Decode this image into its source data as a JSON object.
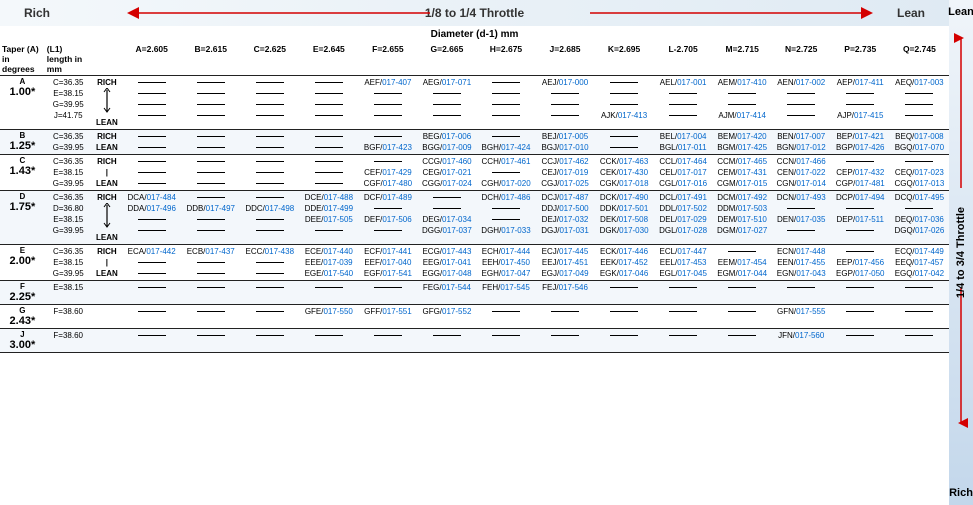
{
  "top": {
    "rich": "Rich",
    "lean": "Lean",
    "mid": "1/8 to 1/4 Throttle"
  },
  "right": {
    "top": "Lean",
    "mid": "1/4 to  3/4 Throttle",
    "bot": "Rich"
  },
  "diam_header": "Diameter (d-1) mm",
  "head": {
    "taper": "Taper (A)\nin degrees",
    "len": "(L1) length\nin mm"
  },
  "cols": [
    "A=2.605",
    "B=2.615",
    "C=2.625",
    "E=2.645",
    "F=2.655",
    "G=2.665",
    "H=2.675",
    "J=2.685",
    "K=2.695",
    "L-2.705",
    "M=2.715",
    "N=2.725",
    "P=2.735",
    "Q=2.745"
  ],
  "arrow_labels": {
    "rich": "RICH",
    "lean": "LEAN"
  },
  "groups": [
    {
      "taper": "A",
      "deg": "1.00*",
      "lens": [
        "C=36.35",
        "E=38.15",
        "G=39.95",
        "J=41.75"
      ],
      "rl": [
        "RICH",
        "",
        "",
        "LEAN"
      ],
      "arrow": true,
      "rows": [
        [
          "—",
          "—",
          "—",
          "—",
          "AEF/017-407",
          "AEG/017-071",
          "—",
          "AEJ/017-000",
          "—",
          "AEL/017-001",
          "AEM/017-410",
          "AEN/017-002",
          "AEP/017-411",
          "AEQ/017-003"
        ],
        [
          "—",
          "—",
          "—",
          "—",
          "—",
          "—",
          "—",
          "—",
          "—",
          "—",
          "—",
          "—",
          "—",
          "—"
        ],
        [
          "—",
          "—",
          "—",
          "—",
          "—",
          "—",
          "—",
          "—",
          "—",
          "—",
          "—",
          "—",
          "—",
          "—"
        ],
        [
          "—",
          "—",
          "—",
          "—",
          "—",
          "—",
          "—",
          "—",
          "AJK/017-413",
          "—",
          "AJM/017-414",
          "—",
          "AJP/017-415",
          "—"
        ]
      ]
    },
    {
      "taper": "B",
      "deg": "1.25*",
      "lens": [
        "C=36.35",
        "G=39.95"
      ],
      "rl": [
        "RICH",
        "LEAN"
      ],
      "rows": [
        [
          "—",
          "—",
          "—",
          "—",
          "—",
          "BEG/017-006",
          "—",
          "BEJ/017-005",
          "—",
          "BEL/017-004",
          "BEM/017-420",
          "BEN/017-007",
          "BEP/017-421",
          "BEQ/017-008"
        ],
        [
          "—",
          "—",
          "—",
          "—",
          "BGF/017-423",
          "BGG/017-009",
          "BGH/017-424",
          "BGJ/017-010",
          "—",
          "BGL/017-011",
          "BGM/017-425",
          "BGN/017-012",
          "BGP/017-426",
          "BGQ/017-070"
        ]
      ]
    },
    {
      "taper": "C",
      "deg": "1.43*",
      "lens": [
        "C=36.35",
        "E=38.15",
        "G=39.95"
      ],
      "rl": [
        "RICH",
        "|",
        "LEAN"
      ],
      "rows": [
        [
          "—",
          "—",
          "—",
          "—",
          "—",
          "CCG/017-460",
          "CCH/017-461",
          "CCJ/017-462",
          "CCK/017-463",
          "CCL/017-464",
          "CCM/017-465",
          "CCN/017-466",
          "—",
          "—"
        ],
        [
          "—",
          "—",
          "—",
          "—",
          "CEF/017-429",
          "CEG/017-021",
          "—",
          "CEJ/017-019",
          "CEK/017-430",
          "CEL/017-017",
          "CEM/017-431",
          "CEN/017-022",
          "CEP/017-432",
          "CEQ/017-023"
        ],
        [
          "—",
          "—",
          "—",
          "—",
          "CGF/017-480",
          "CGG/017-024",
          "CGH/017-020",
          "CGJ/017-025",
          "CGK/017-018",
          "CGL/017-016",
          "CGM/017-015",
          "CGN/017-014",
          "CGP/017-481",
          "CGQ/017-013"
        ]
      ]
    },
    {
      "taper": "D",
      "deg": "1.75*",
      "lens": [
        "C=36.35",
        "D=36.80",
        "E=38.15",
        "G=39.95"
      ],
      "rl": [
        "RICH",
        "",
        "",
        "LEAN"
      ],
      "arrow": true,
      "rows": [
        [
          "DCA/017-484",
          "—",
          "—",
          "DCE/017-488",
          "DCF/017-489",
          "—",
          "DCH/017-486",
          "DCJ/017-487",
          "DCK/017-490",
          "DCL/017-491",
          "DCM/017-492",
          "DCN/017-493",
          "DCP/017-494",
          "DCQ/017-495"
        ],
        [
          "DDA/017-496",
          "DDB/017-497",
          "DDC/017-498",
          "DDE/017-499",
          "—",
          "—",
          "—",
          "DDJ/017-500",
          "DDK/017-501",
          "DDL/017-502",
          "DDM/017-503",
          "—",
          "—",
          "—"
        ],
        [
          "—",
          "—",
          "—",
          "DEE/017-505",
          "DEF/017-506",
          "DEG/017-034",
          "—",
          "DEJ/017-032",
          "DEK/017-508",
          "DEL/017-029",
          "DEM/017-510",
          "DEN/017-035",
          "DEP/017-511",
          "DEQ/017-036"
        ],
        [
          "—",
          "—",
          "—",
          "—",
          "—",
          "DGG/017-037",
          "DGH/017-033",
          "DGJ/017-031",
          "DGK/017-030",
          "DGL/017-028",
          "DGM/017-027",
          "—",
          "—",
          "DGQ/017-026"
        ]
      ]
    },
    {
      "taper": "E",
      "deg": "2.00*",
      "lens": [
        "C=36.35",
        "E=38.15",
        "G=39.95"
      ],
      "rl": [
        "RICH",
        "|",
        "LEAN"
      ],
      "rows": [
        [
          "ECA/017-442",
          "ECB/017-437",
          "ECC/017-438",
          "ECE/017-440",
          "ECF/017-441",
          "ECG/017-443",
          "ECH/017-444",
          "ECJ/017-445",
          "ECK/017-446",
          "ECL/017-447",
          "—",
          "ECN/017-448",
          "—",
          "ECQ/017-449"
        ],
        [
          "—",
          "—",
          "—",
          "EEE/017-039",
          "EEF/017-040",
          "EEG/017-041",
          "EEH/017-450",
          "EEJ/017-451",
          "EEK/017-452",
          "EEL/017-453",
          "EEM/017-454",
          "EEN/017-455",
          "EEP/017-456",
          "EEQ/017-457"
        ],
        [
          "—",
          "—",
          "—",
          "EGE/017-540",
          "EGF/017-541",
          "EGG/017-048",
          "EGH/017-047",
          "EGJ/017-049",
          "EGK/017-046",
          "EGL/017-045",
          "EGM/017-044",
          "EGN/017-043",
          "EGP/017-050",
          "EGQ/017-042"
        ]
      ]
    },
    {
      "taper": "F",
      "deg": "2.25*",
      "lens": [
        "E=38.15"
      ],
      "rl": [
        ""
      ],
      "rows": [
        [
          "—",
          "—",
          "—",
          "—",
          "—",
          "FEG/017-544",
          "FEH/017-545",
          "FEJ/017-546",
          "—",
          "—",
          "—",
          "—",
          "—",
          "—"
        ]
      ]
    },
    {
      "taper": "G",
      "deg": "2.43*",
      "lens": [
        "F=38.60"
      ],
      "rl": [
        ""
      ],
      "rows": [
        [
          "—",
          "—",
          "—",
          "GFE/017-550",
          "GFF/017-551",
          "GFG/017-552",
          "—",
          "—",
          "—",
          "—",
          "—",
          "GFN/017-555",
          "—",
          "—"
        ]
      ]
    },
    {
      "taper": "J",
      "deg": "3.00*",
      "lens": [
        "F=38.60"
      ],
      "rl": [
        ""
      ],
      "rows": [
        [
          "—",
          "—",
          "—",
          "—",
          "—",
          "—",
          "—",
          "—",
          "—",
          "—",
          "—",
          "JFN/017-560",
          "—",
          "—"
        ]
      ]
    }
  ]
}
